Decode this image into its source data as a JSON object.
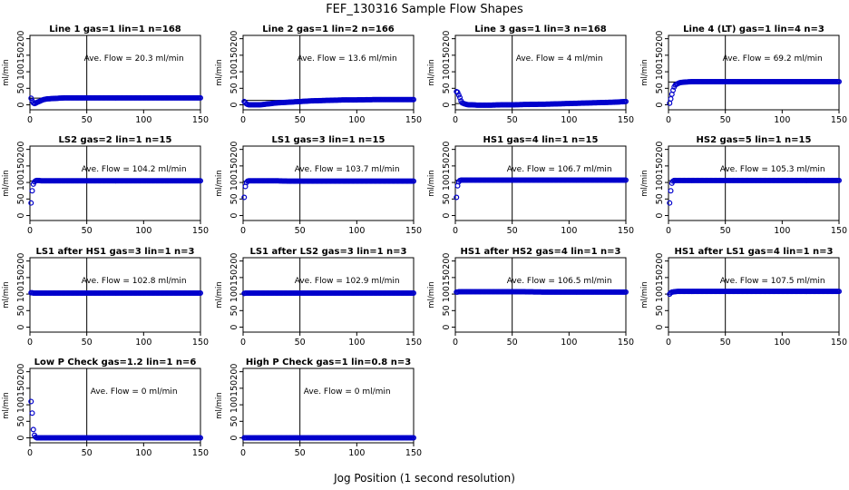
{
  "page": {
    "title": "FEF_130316  Sample Flow Shapes",
    "xlabel": "Jog Position (1 second resolution)"
  },
  "chart_data": [
    {
      "type": "scatter",
      "title": "Line 1 gas=1 lin=1 n=168",
      "ylabel": "ml/min",
      "annotation": "Ave. Flow = 20.3  ml/min",
      "mean": 20.3,
      "xlim": [
        0,
        150
      ],
      "ylim": [
        -15,
        210
      ],
      "yticks": [
        0,
        50,
        100,
        150,
        200
      ],
      "xticks": [
        0,
        50,
        100,
        150
      ],
      "vline": 50,
      "x": [
        1,
        2,
        3,
        4,
        5,
        6,
        8,
        10,
        12,
        15,
        20,
        25,
        30,
        40,
        50,
        60,
        80,
        100,
        120,
        140,
        150
      ],
      "y": [
        20,
        12,
        6,
        4,
        5,
        7,
        10,
        13,
        16,
        18,
        19,
        20,
        21,
        21,
        21,
        21,
        21,
        21,
        21,
        21,
        21
      ]
    },
    {
      "type": "scatter",
      "title": "Line 2 gas=1 lin=2 n=166",
      "ylabel": "ml/min",
      "annotation": "Ave. Flow = 13.6  ml/min",
      "mean": 13.6,
      "xlim": [
        0,
        150
      ],
      "ylim": [
        -15,
        210
      ],
      "yticks": [
        0,
        50,
        100,
        150,
        200
      ],
      "xticks": [
        0,
        50,
        100,
        150
      ],
      "vline": 50,
      "x": [
        1,
        2,
        3,
        4,
        5,
        7,
        10,
        15,
        20,
        25,
        30,
        40,
        50,
        60,
        70,
        80,
        90,
        100,
        120,
        140,
        150
      ],
      "y": [
        10,
        6,
        3,
        1,
        0,
        0,
        0,
        0,
        2,
        4,
        6,
        8,
        10,
        12,
        13,
        14,
        15,
        15,
        16,
        16,
        16
      ]
    },
    {
      "type": "scatter",
      "title": "Line 3 gas=1 lin=3 n=168",
      "ylabel": "ml/min",
      "annotation": "Ave. Flow = 4  ml/min",
      "mean": 4,
      "xlim": [
        0,
        150
      ],
      "ylim": [
        -15,
        210
      ],
      "yticks": [
        0,
        50,
        100,
        150,
        200
      ],
      "xticks": [
        0,
        50,
        100,
        150
      ],
      "vline": 50,
      "x": [
        1,
        2,
        3,
        4,
        5,
        6,
        8,
        10,
        12,
        15,
        20,
        30,
        40,
        50,
        60,
        80,
        100,
        120,
        140,
        150
      ],
      "y": [
        40,
        38,
        30,
        22,
        12,
        6,
        3,
        1,
        0,
        0,
        -1,
        -1,
        0,
        0,
        1,
        2,
        4,
        6,
        8,
        10
      ]
    },
    {
      "type": "scatter",
      "title": "Line 4 (LT) gas=1 lin=4 n=3",
      "ylabel": "ml/min",
      "annotation": "Ave. Flow = 69.2  ml/min",
      "mean": 69.2,
      "xlim": [
        0,
        150
      ],
      "ylim": [
        -15,
        210
      ],
      "yticks": [
        0,
        50,
        100,
        150,
        200
      ],
      "xticks": [
        0,
        50,
        100,
        150
      ],
      "vline": 50,
      "x": [
        1,
        2,
        3,
        4,
        5,
        6,
        8,
        10,
        12,
        15,
        20,
        30,
        40,
        50,
        60,
        80,
        100,
        120,
        140,
        150
      ],
      "y": [
        5,
        18,
        32,
        44,
        54,
        60,
        64,
        67,
        68,
        69,
        70,
        70,
        70,
        70,
        70,
        70,
        70,
        70,
        70,
        70
      ]
    },
    {
      "type": "scatter",
      "title": "LS2 gas=2 lin=1 n=15",
      "ylabel": "ml/min",
      "annotation": "Ave. Flow = 104.2  ml/min",
      "mean": 104.2,
      "xlim": [
        0,
        150
      ],
      "ylim": [
        -15,
        210
      ],
      "yticks": [
        0,
        50,
        100,
        150,
        200
      ],
      "xticks": [
        0,
        50,
        100,
        150
      ],
      "vline": 50,
      "x": [
        1,
        2,
        3,
        4,
        5,
        6,
        8,
        10,
        15,
        20,
        30,
        40,
        50,
        60,
        80,
        100,
        120,
        140,
        150
      ],
      "y": [
        38,
        75,
        95,
        102,
        105,
        106,
        106,
        105,
        105,
        105,
        105,
        105,
        105,
        105,
        105,
        105,
        105,
        105,
        105
      ]
    },
    {
      "type": "scatter",
      "title": "LS1 gas=3 lin=1 n=15",
      "ylabel": "ml/min",
      "annotation": "Ave. Flow = 103.7  ml/min",
      "mean": 103.7,
      "xlim": [
        0,
        150
      ],
      "ylim": [
        -15,
        210
      ],
      "yticks": [
        0,
        50,
        100,
        150,
        200
      ],
      "xticks": [
        0,
        50,
        100,
        150
      ],
      "vline": 50,
      "x": [
        1,
        2,
        3,
        4,
        5,
        6,
        8,
        10,
        15,
        20,
        30,
        40,
        50,
        60,
        80,
        100,
        120,
        140,
        150
      ],
      "y": [
        55,
        88,
        100,
        104,
        105,
        105,
        105,
        105,
        105,
        105,
        105,
        104,
        104,
        104,
        104,
        104,
        104,
        104,
        104
      ]
    },
    {
      "type": "scatter",
      "title": "HS1 gas=4 lin=1 n=15",
      "ylabel": "ml/min",
      "annotation": "Ave. Flow = 106.7  ml/min",
      "mean": 106.7,
      "xlim": [
        0,
        150
      ],
      "ylim": [
        -15,
        210
      ],
      "yticks": [
        0,
        50,
        100,
        150,
        200
      ],
      "xticks": [
        0,
        50,
        100,
        150
      ],
      "vline": 50,
      "x": [
        1,
        2,
        3,
        4,
        5,
        6,
        8,
        10,
        15,
        20,
        30,
        40,
        50,
        60,
        80,
        100,
        120,
        140,
        150
      ],
      "y": [
        55,
        90,
        102,
        106,
        107,
        107,
        107,
        107,
        107,
        107,
        107,
        107,
        107,
        107,
        107,
        107,
        107,
        107,
        107
      ]
    },
    {
      "type": "scatter",
      "title": "HS2 gas=5 lin=1 n=15",
      "ylabel": "ml/min",
      "annotation": "Ave. Flow = 105.3  ml/min",
      "mean": 105.3,
      "xlim": [
        0,
        150
      ],
      "ylim": [
        -15,
        210
      ],
      "yticks": [
        0,
        50,
        100,
        150,
        200
      ],
      "xticks": [
        0,
        50,
        100,
        150
      ],
      "vline": 50,
      "x": [
        1,
        2,
        3,
        4,
        5,
        6,
        8,
        10,
        15,
        20,
        30,
        40,
        50,
        60,
        80,
        100,
        120,
        140,
        150
      ],
      "y": [
        38,
        75,
        98,
        104,
        106,
        106,
        106,
        106,
        106,
        106,
        106,
        106,
        106,
        106,
        106,
        106,
        106,
        106,
        106
      ]
    },
    {
      "type": "scatter",
      "title": "LS1 after HS1 gas=3 lin=1 n=3",
      "ylabel": "ml/min",
      "annotation": "Ave. Flow = 102.8  ml/min",
      "mean": 102.8,
      "xlim": [
        0,
        150
      ],
      "ylim": [
        -15,
        210
      ],
      "yticks": [
        0,
        50,
        100,
        150,
        200
      ],
      "xticks": [
        0,
        50,
        100,
        150
      ],
      "vline": 50,
      "x": [
        1,
        2,
        3,
        5,
        8,
        10,
        15,
        20,
        30,
        40,
        50,
        60,
        80,
        100,
        120,
        140,
        150
      ],
      "y": [
        104,
        104,
        103,
        103,
        103,
        103,
        103,
        103,
        103,
        103,
        103,
        103,
        103,
        103,
        103,
        103,
        103
      ]
    },
    {
      "type": "scatter",
      "title": "LS1 after LS2 gas=3 lin=1 n=3",
      "ylabel": "ml/min",
      "annotation": "Ave. Flow = 102.9  ml/min",
      "mean": 102.9,
      "xlim": [
        0,
        150
      ],
      "ylim": [
        -15,
        210
      ],
      "yticks": [
        0,
        50,
        100,
        150,
        200
      ],
      "xticks": [
        0,
        50,
        100,
        150
      ],
      "vline": 50,
      "x": [
        1,
        2,
        3,
        5,
        8,
        10,
        15,
        20,
        30,
        40,
        50,
        60,
        80,
        100,
        120,
        140,
        150
      ],
      "y": [
        102,
        103,
        103,
        103,
        103,
        103,
        103,
        103,
        103,
        103,
        103,
        103,
        103,
        103,
        103,
        103,
        103
      ]
    },
    {
      "type": "scatter",
      "title": "HS1 after HS2 gas=4 lin=1 n=3",
      "ylabel": "ml/min",
      "annotation": "Ave. Flow = 106.5  ml/min",
      "mean": 106.5,
      "xlim": [
        0,
        150
      ],
      "ylim": [
        -15,
        210
      ],
      "yticks": [
        0,
        50,
        100,
        150,
        200
      ],
      "xticks": [
        0,
        50,
        100,
        150
      ],
      "vline": 50,
      "x": [
        1,
        2,
        3,
        5,
        8,
        10,
        15,
        20,
        30,
        40,
        50,
        60,
        80,
        100,
        120,
        140,
        150
      ],
      "y": [
        106,
        106,
        107,
        107,
        107,
        107,
        107,
        107,
        107,
        107,
        107,
        107,
        106,
        106,
        106,
        106,
        106
      ]
    },
    {
      "type": "scatter",
      "title": "HS1 after LS1 gas=4 lin=1 n=3",
      "ylabel": "ml/min",
      "annotation": "Ave. Flow = 107.5  ml/min",
      "mean": 107.5,
      "xlim": [
        0,
        150
      ],
      "ylim": [
        -15,
        210
      ],
      "yticks": [
        0,
        50,
        100,
        150,
        200
      ],
      "xticks": [
        0,
        50,
        100,
        150
      ],
      "vline": 50,
      "x": [
        1,
        2,
        3,
        5,
        8,
        10,
        15,
        20,
        30,
        40,
        50,
        60,
        80,
        100,
        120,
        140,
        150
      ],
      "y": [
        100,
        104,
        106,
        107,
        108,
        108,
        108,
        108,
        108,
        108,
        108,
        108,
        108,
        108,
        108,
        108,
        108
      ]
    },
    {
      "type": "scatter",
      "title": "Low P Check gas=1.2 lin=1 n=6",
      "ylabel": "ml/min",
      "annotation": "Ave. Flow = 0  ml/min",
      "mean": 0,
      "xlim": [
        0,
        150
      ],
      "ylim": [
        -15,
        210
      ],
      "yticks": [
        0,
        50,
        100,
        150,
        200
      ],
      "xticks": [
        0,
        50,
        100,
        150
      ],
      "vline": 50,
      "x": [
        1,
        2,
        3,
        4,
        5,
        6,
        8,
        10,
        15,
        20,
        30,
        40,
        50,
        60,
        80,
        100,
        120,
        140,
        150
      ],
      "y": [
        110,
        75,
        25,
        8,
        2,
        0,
        0,
        0,
        0,
        0,
        0,
        0,
        0,
        0,
        0,
        0,
        0,
        0,
        0
      ]
    },
    {
      "type": "scatter",
      "title": "High P Check gas=1 lin=0.8 n=3",
      "ylabel": "ml/min",
      "annotation": "Ave. Flow = 0  ml/min",
      "mean": 0,
      "xlim": [
        0,
        150
      ],
      "ylim": [
        -15,
        210
      ],
      "yticks": [
        0,
        50,
        100,
        150,
        200
      ],
      "xticks": [
        0,
        50,
        100,
        150
      ],
      "vline": 50,
      "x": [
        1,
        2,
        3,
        5,
        8,
        10,
        15,
        20,
        30,
        40,
        50,
        60,
        80,
        100,
        120,
        140,
        150
      ],
      "y": [
        0,
        0,
        0,
        0,
        0,
        0,
        0,
        0,
        0,
        0,
        0,
        0,
        0,
        0,
        0,
        0,
        0
      ]
    }
  ],
  "colors": {
    "points": "#0000cc",
    "lines": "#000000",
    "background": "#ffffff"
  }
}
